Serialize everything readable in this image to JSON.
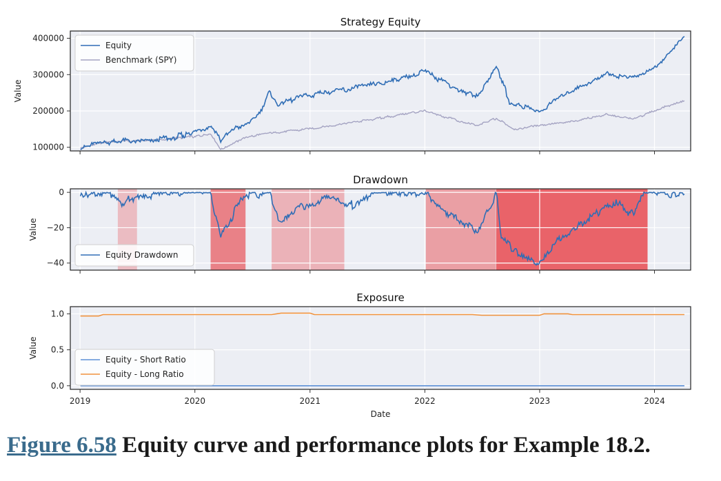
{
  "caption": {
    "figure_label": "Figure 6.58",
    "text": "Equity curve and performance plots for Example 18.2."
  },
  "colors": {
    "equity": "#2f6db5",
    "benchmark": "#a4a3c2",
    "long_ratio": "#f0913b",
    "short_ratio": "#5b8fd6",
    "panel_bg": "#eceef4",
    "grid": "#ffffff"
  },
  "chart_data": [
    {
      "type": "line",
      "title": "Strategy Equity",
      "xlabel": "",
      "ylabel": "Value",
      "xlim": [
        "2018-12-01",
        "2024-04-25"
      ],
      "ylim": [
        90000,
        420000
      ],
      "yticks": [
        100000,
        200000,
        300000,
        400000
      ],
      "ytick_labels": [
        "100000",
        "200000",
        "300000",
        "400000"
      ],
      "grid": true,
      "legend": "top-left",
      "series": [
        {
          "name": "Equity",
          "x": [
            "2019-01-02",
            "2019-03-01",
            "2019-05-01",
            "2019-08-01",
            "2019-11-01",
            "2020-01-15",
            "2020-02-19",
            "2020-03-23",
            "2020-05-01",
            "2020-07-01",
            "2020-08-01",
            "2020-08-25",
            "2020-09-20",
            "2020-12-01",
            "2021-03-01",
            "2021-06-01",
            "2021-09-01",
            "2021-11-15",
            "2022-01-03",
            "2022-03-01",
            "2022-05-15",
            "2022-06-20",
            "2022-08-16",
            "2022-09-30",
            "2022-12-01",
            "2022-12-30",
            "2023-03-01",
            "2023-05-01",
            "2023-08-01",
            "2023-10-27",
            "2023-12-01",
            "2024-01-15",
            "2024-03-01",
            "2024-04-05"
          ],
          "values": [
            100000,
            110000,
            118000,
            120000,
            128000,
            145000,
            160000,
            120000,
            150000,
            175000,
            205000,
            255000,
            215000,
            240000,
            250000,
            265000,
            280000,
            295000,
            310000,
            280000,
            250000,
            240000,
            325000,
            220000,
            210000,
            195000,
            235000,
            260000,
            300000,
            290000,
            300000,
            330000,
            370000,
            405000
          ]
        },
        {
          "name": "Benchmark (SPY)",
          "x": [
            "2019-01-02",
            "2019-04-01",
            "2019-08-01",
            "2019-12-31",
            "2020-02-19",
            "2020-03-23",
            "2020-06-01",
            "2020-09-01",
            "2020-12-31",
            "2021-06-01",
            "2021-12-31",
            "2022-03-01",
            "2022-06-16",
            "2022-08-16",
            "2022-10-12",
            "2022-12-30",
            "2023-04-01",
            "2023-07-31",
            "2023-10-27",
            "2023-12-29",
            "2024-04-05"
          ],
          "values": [
            100000,
            115000,
            118000,
            130000,
            138000,
            93000,
            125000,
            140000,
            150000,
            170000,
            200000,
            185000,
            158000,
            180000,
            150000,
            160000,
            170000,
            190000,
            178000,
            200000,
            228000
          ]
        }
      ]
    },
    {
      "type": "area",
      "title": "Drawdown",
      "xlabel": "",
      "ylabel": "Value",
      "xlim": [
        "2018-12-01",
        "2024-04-25"
      ],
      "ylim": [
        -44,
        2
      ],
      "yticks": [
        0,
        -20,
        -40
      ],
      "ytick_labels": [
        "0",
        "−20",
        "−40"
      ],
      "grid": true,
      "legend": "bottom-left",
      "series": [
        {
          "name": "Equity Drawdown",
          "x": [
            "2019-01-02",
            "2019-04-01",
            "2019-05-20",
            "2019-06-01",
            "2019-07-01",
            "2019-09-01",
            "2020-01-01",
            "2020-02-19",
            "2020-03-23",
            "2020-04-15",
            "2020-06-01",
            "2020-08-25",
            "2020-09-25",
            "2020-12-01",
            "2021-03-01",
            "2021-05-01",
            "2021-08-01",
            "2022-01-03",
            "2022-03-01",
            "2022-05-01",
            "2022-06-20",
            "2022-08-16",
            "2022-09-01",
            "2022-10-15",
            "2022-12-30",
            "2023-03-01",
            "2023-06-01",
            "2023-09-01",
            "2023-10-27",
            "2023-12-01",
            "2024-04-05"
          ],
          "values": [
            0,
            -1,
            -8,
            -4,
            -3,
            -1,
            0,
            0,
            -26,
            -18,
            -2,
            0,
            -17,
            -8,
            -3,
            -8,
            0,
            0,
            -10,
            -18,
            -22,
            0,
            -25,
            -33,
            -40,
            -27,
            -15,
            -5,
            -13,
            0,
            -1
          ]
        }
      ],
      "shaded_periods": [
        {
          "start": "2019-05-01",
          "end": "2019-07-01",
          "intensity": 0.25
        },
        {
          "start": "2020-02-20",
          "end": "2020-06-10",
          "intensity": 0.55
        },
        {
          "start": "2020-09-01",
          "end": "2021-04-20",
          "intensity": 0.3
        },
        {
          "start": "2022-01-04",
          "end": "2022-08-15",
          "intensity": 0.4
        },
        {
          "start": "2022-08-16",
          "end": "2023-12-10",
          "intensity": 0.7
        }
      ]
    },
    {
      "type": "line",
      "title": "Exposure",
      "xlabel": "Date",
      "ylabel": "Value",
      "xlim": [
        "2018-12-01",
        "2024-04-25"
      ],
      "ylim": [
        -0.05,
        1.1
      ],
      "yticks": [
        0.0,
        0.5,
        1.0
      ],
      "ytick_labels": [
        "0.0",
        "0.5",
        "1.0"
      ],
      "xticks": [
        "2019-01-01",
        "2020-01-01",
        "2021-01-01",
        "2022-01-01",
        "2023-01-01",
        "2024-01-01"
      ],
      "xtick_labels": [
        "2019",
        "2020",
        "2021",
        "2022",
        "2023",
        "2024"
      ],
      "grid": true,
      "legend": "bottom-left",
      "series": [
        {
          "name": "Equity - Short Ratio",
          "x": [
            "2019-01-02",
            "2024-04-05"
          ],
          "values": [
            0.0,
            0.0
          ]
        },
        {
          "name": "Equity - Long Ratio",
          "x": [
            "2019-01-02",
            "2019-03-01",
            "2019-03-15",
            "2020-09-01",
            "2020-10-01",
            "2021-01-01",
            "2021-01-15",
            "2022-06-01",
            "2022-07-01",
            "2023-01-01",
            "2023-01-15",
            "2023-04-01",
            "2023-04-15",
            "2024-04-05"
          ],
          "values": [
            0.97,
            0.97,
            0.99,
            0.99,
            1.01,
            1.01,
            0.99,
            0.99,
            0.98,
            0.98,
            1.0,
            1.0,
            0.99,
            0.99
          ]
        }
      ]
    }
  ]
}
